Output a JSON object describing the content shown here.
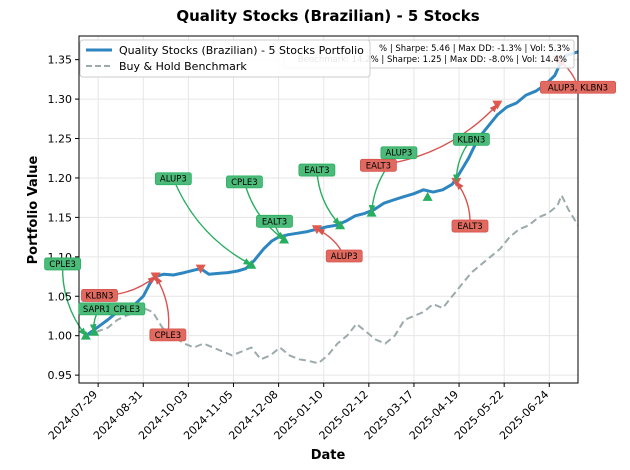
{
  "chart_data": {
    "type": "line",
    "title": "Quality Stocks (Brazilian) - 5 Stocks",
    "xlabel": "Date",
    "ylabel": "Portfolio Value",
    "x_range": [
      "2024-07-15",
      "2025-07-15"
    ],
    "ylim": [
      0.94,
      1.38
    ],
    "x_ticks": [
      "2024-07-29",
      "2024-08-31",
      "2024-10-03",
      "2024-11-05",
      "2024-12-08",
      "2025-01-10",
      "2025-02-12",
      "2025-03-17",
      "2025-04-19",
      "2025-05-22",
      "2025-06-24"
    ],
    "y_ticks": [
      0.95,
      1.0,
      1.05,
      1.1,
      1.15,
      1.2,
      1.25,
      1.3,
      1.35
    ],
    "y_tick_labels": [
      "0.95",
      "1.00",
      "1.05",
      "1.10",
      "1.15",
      "1.20",
      "1.25",
      "1.30",
      "1.35"
    ],
    "grid": true,
    "legend_position": "top-left",
    "series": [
      {
        "name": "Quality Stocks (Brazilian) - 5 Stocks Portfolio",
        "color": "#2e86c1",
        "style": "solid",
        "points": [
          [
            "2024-07-20",
            1.0
          ],
          [
            "2024-07-28",
            1.01
          ],
          [
            "2024-08-05",
            1.02
          ],
          [
            "2024-08-12",
            1.03
          ],
          [
            "2024-08-18",
            1.03
          ],
          [
            "2024-08-25",
            1.04
          ],
          [
            "2024-08-31",
            1.05
          ],
          [
            "2024-09-03",
            1.06
          ],
          [
            "2024-09-06",
            1.07
          ],
          [
            "2024-09-09",
            1.075
          ],
          [
            "2024-09-15",
            1.078
          ],
          [
            "2024-09-22",
            1.077
          ],
          [
            "2024-09-30",
            1.08
          ],
          [
            "2024-10-07",
            1.083
          ],
          [
            "2024-10-12",
            1.085
          ],
          [
            "2024-10-18",
            1.078
          ],
          [
            "2024-10-25",
            1.079
          ],
          [
            "2024-11-01",
            1.08
          ],
          [
            "2024-11-08",
            1.082
          ],
          [
            "2024-11-14",
            1.085
          ],
          [
            "2024-11-20",
            1.095
          ],
          [
            "2024-11-27",
            1.11
          ],
          [
            "2024-12-03",
            1.12
          ],
          [
            "2024-12-08",
            1.125
          ],
          [
            "2024-12-15",
            1.128
          ],
          [
            "2024-12-22",
            1.13
          ],
          [
            "2024-12-29",
            1.132
          ],
          [
            "2025-01-05",
            1.135
          ],
          [
            "2025-01-12",
            1.138
          ],
          [
            "2025-01-19",
            1.14
          ],
          [
            "2025-01-26",
            1.145
          ],
          [
            "2025-02-02",
            1.152
          ],
          [
            "2025-02-09",
            1.155
          ],
          [
            "2025-02-16",
            1.16
          ],
          [
            "2025-02-23",
            1.168
          ],
          [
            "2025-03-02",
            1.172
          ],
          [
            "2025-03-09",
            1.176
          ],
          [
            "2025-03-17",
            1.18
          ],
          [
            "2025-03-24",
            1.185
          ],
          [
            "2025-03-31",
            1.182
          ],
          [
            "2025-04-07",
            1.185
          ],
          [
            "2025-04-14",
            1.192
          ],
          [
            "2025-04-19",
            1.205
          ],
          [
            "2025-04-26",
            1.225
          ],
          [
            "2025-05-03",
            1.25
          ],
          [
            "2025-05-10",
            1.265
          ],
          [
            "2025-05-17",
            1.28
          ],
          [
            "2025-05-24",
            1.29
          ],
          [
            "2025-05-31",
            1.295
          ],
          [
            "2025-06-07",
            1.305
          ],
          [
            "2025-06-14",
            1.31
          ],
          [
            "2025-06-21",
            1.318
          ],
          [
            "2025-06-28",
            1.33
          ],
          [
            "2025-07-02",
            1.345
          ],
          [
            "2025-07-06",
            1.355
          ],
          [
            "2025-07-15",
            1.36
          ]
        ]
      },
      {
        "name": "Buy & Hold Benchmark",
        "color": "#9daaab",
        "style": "dashed",
        "points": [
          [
            "2024-07-20",
            1.0
          ],
          [
            "2024-07-28",
            1.005
          ],
          [
            "2024-08-05",
            1.01
          ],
          [
            "2024-08-12",
            1.02
          ],
          [
            "2024-08-18",
            1.025
          ],
          [
            "2024-08-25",
            1.03
          ],
          [
            "2024-08-31",
            1.035
          ],
          [
            "2024-09-07",
            1.03
          ],
          [
            "2024-09-14",
            1.01
          ],
          [
            "2024-09-21",
            1.0
          ],
          [
            "2024-09-30",
            0.99
          ],
          [
            "2024-10-07",
            0.985
          ],
          [
            "2024-10-14",
            0.99
          ],
          [
            "2024-10-21",
            0.985
          ],
          [
            "2024-10-28",
            0.98
          ],
          [
            "2024-11-04",
            0.975
          ],
          [
            "2024-11-11",
            0.98
          ],
          [
            "2024-11-18",
            0.985
          ],
          [
            "2024-11-25",
            0.97
          ],
          [
            "2024-12-02",
            0.975
          ],
          [
            "2024-12-09",
            0.985
          ],
          [
            "2024-12-16",
            0.975
          ],
          [
            "2024-12-23",
            0.97
          ],
          [
            "2024-12-30",
            0.968
          ],
          [
            "2025-01-06",
            0.965
          ],
          [
            "2025-01-13",
            0.975
          ],
          [
            "2025-01-20",
            0.99
          ],
          [
            "2025-01-27",
            1.0
          ],
          [
            "2025-02-03",
            1.015
          ],
          [
            "2025-02-10",
            1.005
          ],
          [
            "2025-02-17",
            0.995
          ],
          [
            "2025-02-24",
            0.99
          ],
          [
            "2025-03-03",
            1.0
          ],
          [
            "2025-03-10",
            1.02
          ],
          [
            "2025-03-17",
            1.025
          ],
          [
            "2025-03-24",
            1.03
          ],
          [
            "2025-03-31",
            1.04
          ],
          [
            "2025-04-07",
            1.035
          ],
          [
            "2025-04-14",
            1.05
          ],
          [
            "2025-04-21",
            1.065
          ],
          [
            "2025-04-28",
            1.08
          ],
          [
            "2025-05-05",
            1.09
          ],
          [
            "2025-05-12",
            1.1
          ],
          [
            "2025-05-19",
            1.11
          ],
          [
            "2025-05-26",
            1.125
          ],
          [
            "2025-06-02",
            1.135
          ],
          [
            "2025-06-09",
            1.14
          ],
          [
            "2025-06-16",
            1.15
          ],
          [
            "2025-06-23",
            1.155
          ],
          [
            "2025-06-30",
            1.165
          ],
          [
            "2025-07-03",
            1.178
          ],
          [
            "2025-07-08",
            1.16
          ],
          [
            "2025-07-15",
            1.14
          ]
        ]
      }
    ],
    "stats_text": [
      "% | Sharpe: 5.46 | Max DD: -1.3% | Vol: 5.3%",
      "Benchmark: 14.2% | Sharpe: 1.25 | Max DD: -8.0% | Vol: 14.4%"
    ],
    "markers": [
      {
        "type": "buy",
        "date": "2024-07-20",
        "value": 1.0
      },
      {
        "type": "buy",
        "date": "2024-07-26",
        "value": 1.005
      },
      {
        "type": "buy",
        "date": "2024-08-20",
        "value": 1.035
      },
      {
        "type": "sell",
        "date": "2024-09-09",
        "value": 1.075
      },
      {
        "type": "sell",
        "date": "2024-10-12",
        "value": 1.085
      },
      {
        "type": "buy",
        "date": "2024-11-18",
        "value": 1.09
      },
      {
        "type": "buy",
        "date": "2024-12-12",
        "value": 1.122
      },
      {
        "type": "sell",
        "date": "2025-01-05",
        "value": 1.135
      },
      {
        "type": "buy",
        "date": "2025-01-22",
        "value": 1.14
      },
      {
        "type": "buy",
        "date": "2025-02-14",
        "value": 1.156
      },
      {
        "type": "buy",
        "date": "2025-03-27",
        "value": 1.176
      },
      {
        "type": "sell",
        "date": "2025-04-17",
        "value": 1.195
      },
      {
        "type": "sell",
        "date": "2025-05-17",
        "value": 1.293
      },
      {
        "type": "sell",
        "date": "2025-06-30",
        "value": 1.35
      }
    ],
    "annotations": [
      {
        "label": "CPLE3",
        "kind": "buy",
        "box_date": "2024-07-03",
        "box_value": 1.091,
        "target_date": "2024-07-20",
        "target_value": 1.0
      },
      {
        "label": "SAPR11",
        "kind": "buy",
        "box_date": "2024-07-30",
        "box_value": 1.034,
        "target_date": "2024-07-26",
        "target_value": 1.005
      },
      {
        "label": "CPLE3",
        "kind": "buy",
        "box_date": "2024-08-19",
        "box_value": 1.034,
        "target_date": "2024-08-20",
        "target_value": 1.035
      },
      {
        "label": "KLBN3",
        "kind": "sell",
        "box_date": "2024-07-30",
        "box_value": 1.051,
        "target_date": "2024-09-09",
        "target_value": 1.075
      },
      {
        "label": "CPLE3",
        "kind": "sell",
        "box_date": "2024-09-18",
        "box_value": 1.001,
        "target_date": "2024-09-09",
        "target_value": 1.075
      },
      {
        "label": "ALUP3",
        "kind": "buy",
        "box_date": "2024-09-22",
        "box_value": 1.199,
        "target_date": "2024-11-18",
        "target_value": 1.09
      },
      {
        "label": "CPLE3",
        "kind": "buy",
        "box_date": "2024-11-13",
        "box_value": 1.195,
        "target_date": "2024-12-12",
        "target_value": 1.122
      },
      {
        "label": "EALT3",
        "kind": "buy",
        "box_date": "2024-12-05",
        "box_value": 1.145,
        "target_date": "2024-12-12",
        "target_value": 1.122
      },
      {
        "label": "EALT3",
        "kind": "buy",
        "box_date": "2025-01-05",
        "box_value": 1.21,
        "target_date": "2025-01-22",
        "target_value": 1.14
      },
      {
        "label": "ALUP3",
        "kind": "sell",
        "box_date": "2025-01-25",
        "box_value": 1.101,
        "target_date": "2025-01-05",
        "target_value": 1.135
      },
      {
        "label": "EALT3",
        "kind": "sell",
        "box_date": "2025-02-19",
        "box_value": 1.216,
        "target_date": "2025-05-17",
        "target_value": 1.293
      },
      {
        "label": "ALUP3",
        "kind": "buy",
        "box_date": "2025-03-06",
        "box_value": 1.232,
        "target_date": "2025-02-14",
        "target_value": 1.156
      },
      {
        "label": "KLBN3",
        "kind": "buy",
        "box_date": "2025-04-28",
        "box_value": 1.249,
        "target_date": "2025-04-17",
        "target_value": 1.195
      },
      {
        "label": "EALT3",
        "kind": "sell",
        "box_date": "2025-04-27",
        "box_value": 1.139,
        "target_date": "2025-04-17",
        "target_value": 1.195
      },
      {
        "label": "ALUP3, KLBN3",
        "kind": "sell",
        "box_date": "2025-07-15",
        "box_value": 1.315,
        "target_date": "2025-06-30",
        "target_value": 1.35
      }
    ]
  }
}
